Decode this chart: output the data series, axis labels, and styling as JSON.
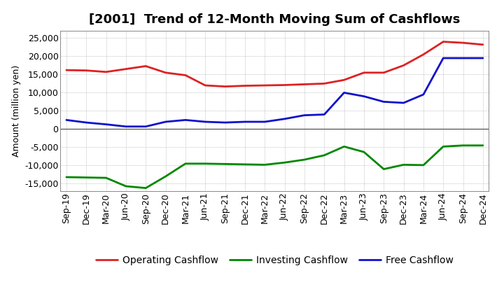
{
  "title": "[2001]  Trend of 12-Month Moving Sum of Cashflows",
  "ylabel": "Amount (million yen)",
  "xlabels": [
    "Sep-19",
    "Dec-19",
    "Mar-20",
    "Jun-20",
    "Sep-20",
    "Dec-20",
    "Mar-21",
    "Jun-21",
    "Sep-21",
    "Dec-21",
    "Mar-22",
    "Jun-22",
    "Sep-22",
    "Dec-22",
    "Mar-23",
    "Jun-23",
    "Sep-23",
    "Dec-23",
    "Mar-24",
    "Jun-24",
    "Sep-24",
    "Dec-24"
  ],
  "operating": [
    16200,
    16100,
    15700,
    16500,
    17300,
    15500,
    14800,
    12000,
    11700,
    11900,
    12000,
    12100,
    12300,
    12500,
    13500,
    15500,
    15500,
    17500,
    20500,
    24000,
    23700,
    23200
  ],
  "investing": [
    -13200,
    -13300,
    -13400,
    -15700,
    -16200,
    -13000,
    -9500,
    -9500,
    -9600,
    -9700,
    -9800,
    -9200,
    -8400,
    -7200,
    -4800,
    -6300,
    -11000,
    -9800,
    -9900,
    -4800,
    -4500,
    -4500
  ],
  "free": [
    2500,
    1800,
    1300,
    700,
    700,
    2000,
    2500,
    2000,
    1800,
    2000,
    2000,
    2800,
    3800,
    4000,
    10000,
    9000,
    7500,
    7200,
    9500,
    19500,
    19500,
    19500
  ],
  "operating_color": "#dd2222",
  "investing_color": "#008800",
  "free_color": "#1111cc",
  "ylim": [
    -17000,
    27000
  ],
  "yticks": [
    -15000,
    -10000,
    -5000,
    0,
    5000,
    10000,
    15000,
    20000,
    25000
  ],
  "background_color": "#ffffff",
  "grid_color": "#999999",
  "title_fontsize": 13,
  "axis_fontsize": 9,
  "legend_fontsize": 10,
  "line_width": 2.0
}
